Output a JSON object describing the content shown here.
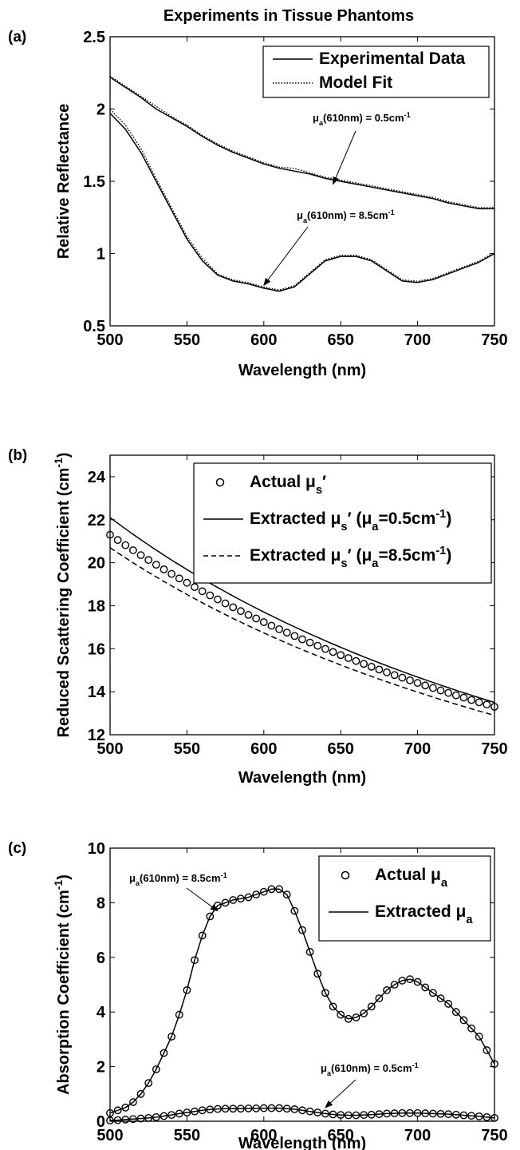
{
  "title": "Experiments in Tissue Phantoms",
  "chart_data": [
    {
      "type": "line",
      "panel_label": "(a)",
      "xlabel": "Wavelength (nm)",
      "ylabel": "Relative Reflectance",
      "xlim": [
        500,
        750
      ],
      "ylim": [
        0.5,
        2.5
      ],
      "xticks": [
        "500",
        "550",
        "600",
        "650",
        "700",
        "750"
      ],
      "yticks": [
        "0.5",
        "1",
        "1.5",
        "2",
        "2.5"
      ],
      "legend": {
        "position": "top-right",
        "entries": [
          "Experimental Data",
          "Model Fit"
        ]
      },
      "annotations": [
        {
          "base": "μ",
          "sub": "a",
          "tail": "(610nm) = 0.5cm",
          "sup": "-1",
          "text": "μa(610nm) = 0.5cm-1",
          "target": [
            645,
            1.48
          ]
        },
        {
          "base": "μ",
          "sub": "a",
          "tail": "(610nm) = 8.5cm",
          "sup": "-1",
          "text": "μa(610nm) = 8.5cm-1",
          "target": [
            600,
            0.78
          ]
        }
      ],
      "x": [
        500,
        510,
        520,
        530,
        540,
        550,
        560,
        570,
        580,
        590,
        600,
        610,
        620,
        630,
        640,
        650,
        660,
        670,
        680,
        690,
        700,
        710,
        720,
        730,
        740,
        750
      ],
      "series": [
        {
          "name": "Experimental Data",
          "style": "solid",
          "values": [
            2.22,
            2.15,
            2.08,
            2.0,
            1.94,
            1.88,
            1.81,
            1.75,
            1.7,
            1.66,
            1.62,
            1.59,
            1.57,
            1.55,
            1.52,
            1.5,
            1.48,
            1.46,
            1.44,
            1.42,
            1.4,
            1.38,
            1.35,
            1.33,
            1.31,
            1.31
          ]
        },
        {
          "name": "Model Fit",
          "style": "dotted",
          "values": [
            2.22,
            2.15,
            2.08,
            2.01,
            1.94,
            1.88,
            1.81,
            1.75,
            1.7,
            1.66,
            1.62,
            1.59,
            1.58,
            1.55,
            1.52,
            1.5,
            1.48,
            1.46,
            1.44,
            1.42,
            1.4,
            1.38,
            1.35,
            1.33,
            1.31,
            1.31
          ]
        },
        {
          "name": "Experimental Data",
          "style": "solid",
          "values": [
            1.97,
            1.86,
            1.7,
            1.5,
            1.3,
            1.1,
            0.95,
            0.85,
            0.81,
            0.79,
            0.76,
            0.74,
            0.77,
            0.86,
            0.95,
            0.98,
            0.98,
            0.95,
            0.88,
            0.81,
            0.8,
            0.82,
            0.86,
            0.9,
            0.94,
            1.0
          ]
        },
        {
          "name": "Model Fit",
          "style": "dotted",
          "values": [
            1.99,
            1.88,
            1.72,
            1.51,
            1.31,
            1.11,
            0.96,
            0.85,
            0.81,
            0.79,
            0.76,
            0.74,
            0.77,
            0.86,
            0.95,
            0.98,
            0.98,
            0.95,
            0.88,
            0.81,
            0.8,
            0.82,
            0.86,
            0.9,
            0.94,
            1.0
          ]
        }
      ]
    },
    {
      "type": "line",
      "panel_label": "(b)",
      "xlabel": "Wavelength (nm)",
      "ylabel": "Reduced Scattering Coefficient (cm",
      "ylabel_sup": "-1",
      "ylabel_end": ")",
      "xlim": [
        500,
        750
      ],
      "ylim": [
        12,
        25
      ],
      "xticks": [
        "500",
        "550",
        "600",
        "650",
        "700",
        "750"
      ],
      "yticks": [
        "12",
        "14",
        "16",
        "18",
        "20",
        "22",
        "24"
      ],
      "legend": {
        "position": "top-right",
        "entries": [
          {
            "marker": "circle",
            "text": "Actual μs′",
            "parts": [
              "Actual μ",
              "s",
              "′"
            ]
          },
          {
            "style": "solid",
            "text": "Extracted μs′ (μa=0.5cm-1)",
            "parts": [
              "Extracted μ",
              "s",
              "′ (μ",
              "a",
              "=0.5cm",
              "-1",
              ")"
            ]
          },
          {
            "style": "dashed",
            "text": "Extracted μs′ (μa=8.5cm-1)",
            "parts": [
              "Extracted μ",
              "s",
              "′ (μ",
              "a",
              "=8.5cm",
              "-1",
              ")"
            ]
          }
        ]
      },
      "series": [
        {
          "name": "Actual μs′",
          "kind": "power",
          "start": 21.3,
          "end": 13.3,
          "style": "circles",
          "markers": 50
        },
        {
          "name": "Extracted μs′ (μa=0.5cm-1)",
          "kind": "power",
          "start": 22.1,
          "end": 13.5,
          "style": "solid"
        },
        {
          "name": "Extracted μs′ (μa=8.5cm-1)",
          "kind": "power",
          "start": 20.7,
          "end": 12.9,
          "style": "dashed"
        }
      ]
    },
    {
      "type": "line",
      "panel_label": "(c)",
      "xlabel": "Wavelength (nm)",
      "ylabel": "Absorption Coefficient (cm",
      "ylabel_sup": "-1",
      "ylabel_end": ")",
      "xlim": [
        500,
        750
      ],
      "ylim": [
        0,
        10
      ],
      "xticks": [
        "500",
        "550",
        "600",
        "650",
        "700",
        "750"
      ],
      "yticks": [
        "0",
        "2",
        "4",
        "6",
        "8",
        "10"
      ],
      "legend": {
        "position": "top-right",
        "entries": [
          {
            "marker": "circle",
            "text": "Actual μa",
            "parts": [
              "Actual μ",
              "a"
            ]
          },
          {
            "style": "solid",
            "text": "Extracted μa",
            "parts": [
              "Extracted μ",
              "a"
            ]
          }
        ]
      },
      "annotations": [
        {
          "base": "μ",
          "sub": "a",
          "tail": "(610nm) = 8.5cm",
          "sup": "-1",
          "text": "μa(610nm) = 8.5cm-1",
          "target": [
            570,
            7.7
          ]
        },
        {
          "base": "μ",
          "sub": "a",
          "tail": "(610nm) = 0.5cm",
          "sup": "-1",
          "text": "μa(610nm) = 0.5cm-1",
          "target": [
            640,
            0.5
          ]
        }
      ],
      "x": [
        500,
        505,
        510,
        515,
        520,
        525,
        530,
        535,
        540,
        545,
        550,
        555,
        560,
        565,
        570,
        575,
        580,
        585,
        590,
        595,
        600,
        605,
        610,
        615,
        620,
        625,
        630,
        635,
        640,
        645,
        650,
        655,
        660,
        665,
        670,
        675,
        680,
        685,
        690,
        695,
        700,
        705,
        710,
        715,
        720,
        725,
        730,
        735,
        740,
        745,
        750
      ],
      "series": [
        {
          "name": "Actual μa",
          "style": "circles",
          "values": [
            0.3,
            0.4,
            0.5,
            0.7,
            1.0,
            1.4,
            1.9,
            2.5,
            3.1,
            3.9,
            4.8,
            5.9,
            6.8,
            7.5,
            7.9,
            8.0,
            8.1,
            8.15,
            8.2,
            8.3,
            8.4,
            8.5,
            8.5,
            8.3,
            7.7,
            7.0,
            6.2,
            5.4,
            4.7,
            4.2,
            3.9,
            3.75,
            3.8,
            3.95,
            4.2,
            4.5,
            4.8,
            5.0,
            5.15,
            5.2,
            5.1,
            4.9,
            4.7,
            4.5,
            4.3,
            4.0,
            3.7,
            3.4,
            3.1,
            2.6,
            2.1
          ]
        },
        {
          "name": "Extracted μa",
          "style": "solid",
          "values": [
            0.3,
            0.4,
            0.5,
            0.7,
            1.0,
            1.4,
            1.9,
            2.5,
            3.1,
            3.9,
            4.8,
            5.9,
            6.8,
            7.5,
            7.9,
            8.0,
            8.1,
            8.15,
            8.2,
            8.3,
            8.4,
            8.5,
            8.5,
            8.3,
            7.7,
            7.0,
            6.2,
            5.4,
            4.7,
            4.2,
            3.9,
            3.75,
            3.8,
            3.95,
            4.2,
            4.5,
            4.8,
            5.0,
            5.15,
            5.2,
            5.1,
            4.9,
            4.7,
            4.5,
            4.3,
            4.0,
            3.7,
            3.4,
            3.1,
            2.6,
            2.1
          ]
        },
        {
          "name": "Actual μa",
          "style": "circles",
          "values": [
            0.03,
            0.04,
            0.06,
            0.08,
            0.1,
            0.12,
            0.15,
            0.19,
            0.23,
            0.28,
            0.32,
            0.36,
            0.4,
            0.43,
            0.45,
            0.46,
            0.46,
            0.46,
            0.47,
            0.47,
            0.48,
            0.48,
            0.48,
            0.46,
            0.44,
            0.4,
            0.36,
            0.32,
            0.28,
            0.25,
            0.23,
            0.22,
            0.22,
            0.23,
            0.24,
            0.26,
            0.28,
            0.29,
            0.3,
            0.3,
            0.3,
            0.29,
            0.28,
            0.27,
            0.26,
            0.24,
            0.22,
            0.2,
            0.18,
            0.15,
            0.12
          ]
        },
        {
          "name": "Extracted μa",
          "style": "solid",
          "values": [
            0.03,
            0.04,
            0.06,
            0.08,
            0.1,
            0.12,
            0.15,
            0.19,
            0.23,
            0.28,
            0.32,
            0.36,
            0.4,
            0.43,
            0.45,
            0.46,
            0.46,
            0.46,
            0.47,
            0.47,
            0.48,
            0.48,
            0.48,
            0.46,
            0.44,
            0.4,
            0.36,
            0.32,
            0.28,
            0.25,
            0.23,
            0.22,
            0.22,
            0.23,
            0.24,
            0.26,
            0.28,
            0.29,
            0.3,
            0.3,
            0.3,
            0.29,
            0.28,
            0.27,
            0.26,
            0.24,
            0.22,
            0.2,
            0.18,
            0.15,
            0.12
          ]
        }
      ]
    }
  ]
}
